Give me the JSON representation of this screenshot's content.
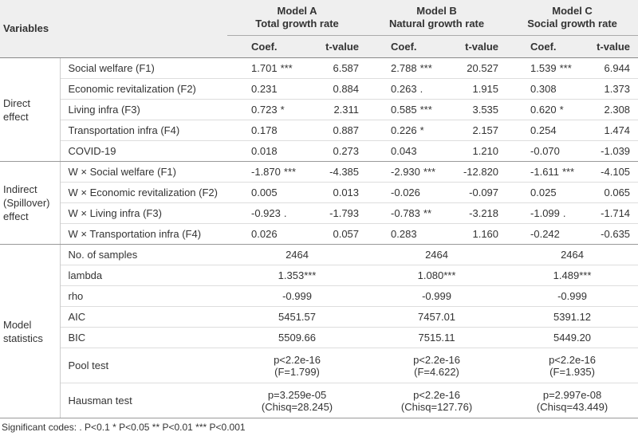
{
  "header": {
    "variables": "Variables",
    "models": [
      {
        "name": "Model A",
        "subtitle": "Total growth rate",
        "columns": [
          "Coef.",
          "t-value"
        ]
      },
      {
        "name": "Model B",
        "subtitle": "Natural growth rate",
        "columns": [
          "Coef.",
          "t-value"
        ]
      },
      {
        "name": "Model C",
        "subtitle": "Social growth rate",
        "columns": [
          "Coef.",
          "t-value"
        ]
      }
    ]
  },
  "groups": [
    {
      "label": "Direct effect",
      "rows": [
        {
          "variable": "Social welfare (F1)",
          "cells": [
            {
              "coef": "1.701",
              "sig": "***",
              "t": "6.587"
            },
            {
              "coef": "2.788",
              "sig": "***",
              "t": "20.527"
            },
            {
              "coef": "1.539",
              "sig": "***",
              "t": "6.944"
            }
          ]
        },
        {
          "variable": "Economic revitalization (F2)",
          "cells": [
            {
              "coef": "0.231",
              "t": "0.884"
            },
            {
              "coef": "0.263",
              "sig": ".",
              "t": "1.915"
            },
            {
              "coef": "0.308",
              "t": "1.373"
            }
          ]
        },
        {
          "variable": "Living infra (F3)",
          "cells": [
            {
              "coef": "0.723",
              "sig": "*",
              "t": "2.311"
            },
            {
              "coef": "0.585",
              "sig": "***",
              "t": "3.535"
            },
            {
              "coef": "0.620",
              "sig": "*",
              "t": "2.308"
            }
          ]
        },
        {
          "variable": "Transportation infra (F4)",
          "cells": [
            {
              "coef": "0.178",
              "t": "0.887"
            },
            {
              "coef": "0.226",
              "sig": "*",
              "t": "2.157"
            },
            {
              "coef": "0.254",
              "t": "1.474"
            }
          ]
        },
        {
          "variable": "COVID-19",
          "cells": [
            {
              "coef": "0.018",
              "t": "0.273"
            },
            {
              "coef": "0.043",
              "t": "1.210"
            },
            {
              "coef": "-0.070",
              "t": "-1.039"
            }
          ]
        }
      ]
    },
    {
      "label": "Indirect (Spillover) effect",
      "rows": [
        {
          "variable": "W × Social welfare (F1)",
          "cells": [
            {
              "coef": "-1.870",
              "sig": "***",
              "t": "-4.385"
            },
            {
              "coef": "-2.930",
              "sig": "***",
              "t": "-12.820"
            },
            {
              "coef": "-1.611",
              "sig": "***",
              "t": "-4.105"
            }
          ]
        },
        {
          "variable": "W × Economic revitalization (F2)",
          "cells": [
            {
              "coef": "0.005",
              "t": "0.013"
            },
            {
              "coef": "-0.026",
              "t": "-0.097"
            },
            {
              "coef": "0.025",
              "t": "0.065"
            }
          ]
        },
        {
          "variable": "W × Living infra (F3)",
          "cells": [
            {
              "coef": "-0.923",
              "sig": ".",
              "t": "-1.793"
            },
            {
              "coef": "-0.783",
              "sig": "**",
              "t": "-3.218"
            },
            {
              "coef": "-1.099",
              "sig": ".",
              "t": "-1.714"
            }
          ]
        },
        {
          "variable": "W × Transportation infra (F4)",
          "cells": [
            {
              "coef": "0.026",
              "t": "0.057"
            },
            {
              "coef": "0.283",
              "t": "1.160"
            },
            {
              "coef": "-0.242",
              "t": "-0.635"
            }
          ]
        }
      ]
    }
  ],
  "statistics": {
    "label": "Model statistics",
    "rows": [
      {
        "name": "No. of samples",
        "values": [
          [
            "2464"
          ],
          [
            "2464"
          ],
          [
            "2464"
          ]
        ]
      },
      {
        "name": "lambda",
        "values": [
          [
            "1.353***"
          ],
          [
            "1.080***"
          ],
          [
            "1.489***"
          ]
        ]
      },
      {
        "name": "rho",
        "values": [
          [
            "-0.999"
          ],
          [
            "-0.999"
          ],
          [
            "-0.999"
          ]
        ]
      },
      {
        "name": "AIC",
        "values": [
          [
            "5451.57"
          ],
          [
            "7457.01"
          ],
          [
            "5391.12"
          ]
        ]
      },
      {
        "name": "BIC",
        "values": [
          [
            "5509.66"
          ],
          [
            "7515.11"
          ],
          [
            "5449.20"
          ]
        ]
      },
      {
        "name": "Pool test",
        "values": [
          [
            "p<2.2e-16",
            "(F=1.799)"
          ],
          [
            "p<2.2e-16",
            "(F=4.622)"
          ],
          [
            "p<2.2e-16",
            "(F=1.935)"
          ]
        ]
      },
      {
        "name": "Hausman test",
        "values": [
          [
            "p=3.259e-05",
            "(Chisq=28.245)"
          ],
          [
            "p<2.2e-16",
            "(Chisq=127.76)"
          ],
          [
            "p=2.997e-08",
            "(Chisq=43.449)"
          ]
        ]
      }
    ]
  },
  "footnote": "Significant codes: . P<0.1 * P<0.05 ** P<0.01 *** P<0.001"
}
